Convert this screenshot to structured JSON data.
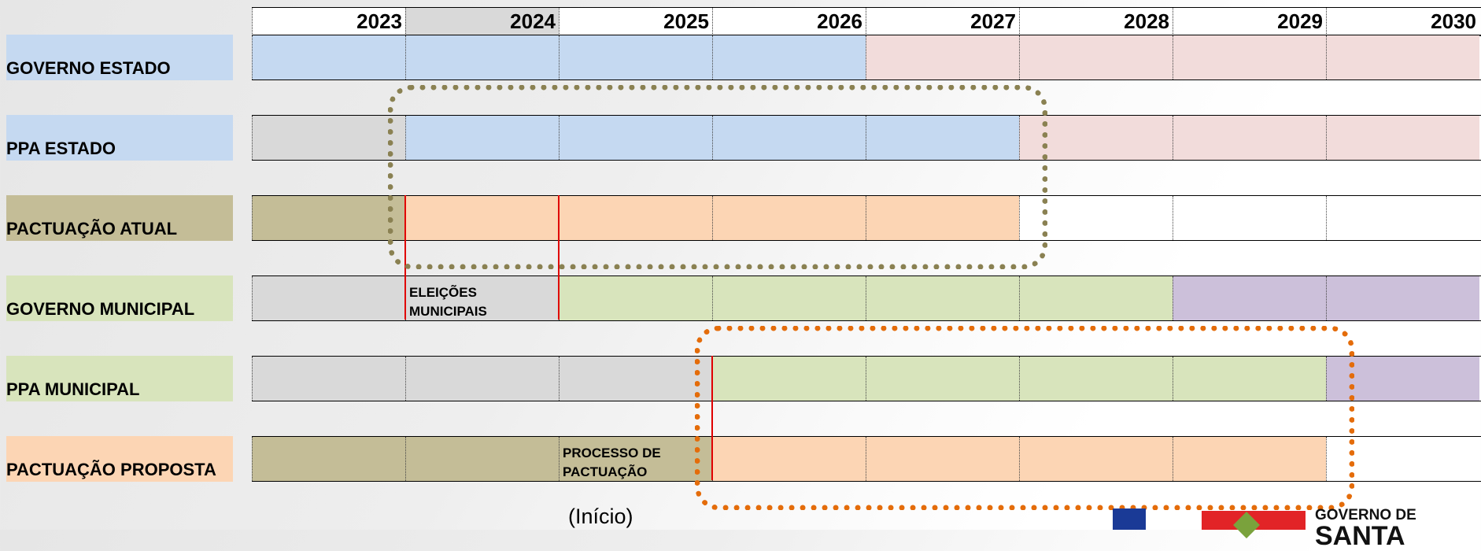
{
  "colors": {
    "blue": "#c5d9f1",
    "pink": "#f2dcdb",
    "gray": "#d9d9d9",
    "khaki": "#c4bd97",
    "peach": "#fcd5b4",
    "green": "#d8e4bc",
    "purple": "#ccc0da",
    "white": "#ffffff",
    "box_khaki": "#8a8152",
    "box_orange": "#e46c0a",
    "divider_red": "#e00000"
  },
  "years": [
    "2023",
    "2024",
    "2025",
    "2026",
    "2027",
    "2028",
    "2029",
    "2030"
  ],
  "selected_year": "2024",
  "rows": [
    {
      "label": "GOVERNO ESTADO",
      "label_color": "blue",
      "cells": [
        "blue",
        "blue",
        "blue",
        "blue",
        "pink",
        "pink",
        "pink",
        "pink"
      ],
      "notes": {}
    },
    {
      "label": "PPA ESTADO",
      "label_color": "blue",
      "cells": [
        "gray",
        "blue",
        "blue",
        "blue",
        "blue",
        "pink",
        "pink",
        "pink"
      ],
      "notes": {}
    },
    {
      "label": "PACTUAÇÃO ATUAL",
      "label_color": "khaki",
      "cells": [
        "khaki",
        "peach",
        "peach",
        "peach",
        "peach",
        "white",
        "white",
        "white"
      ],
      "notes": {}
    },
    {
      "label": "GOVERNO MUNICIPAL",
      "label_color": "green",
      "cells": [
        "gray",
        "gray",
        "green",
        "green",
        "green",
        "green",
        "purple",
        "purple"
      ],
      "notes": {
        "1": "ELEIÇÕES\nMUNICIPAIS"
      }
    },
    {
      "label": "PPA MUNICIPAL",
      "label_color": "green",
      "cells": [
        "gray",
        "gray",
        "gray",
        "green",
        "green",
        "green",
        "green",
        "purple"
      ],
      "notes": {}
    },
    {
      "label": "PACTUAÇÃO PROPOSTA",
      "label_color": "peach",
      "cells": [
        "khaki",
        "khaki",
        "khaki",
        "peach",
        "peach",
        "peach",
        "peach",
        "white"
      ],
      "notes": {
        "2": "PROCESSO DE\nPACTUAÇÃO"
      }
    }
  ],
  "red_dividers": [
    {
      "year": "2024",
      "from_row": 2,
      "to_row": 3
    },
    {
      "year": "2025",
      "from_row": 2,
      "to_row": 3
    },
    {
      "year": "2026",
      "from_row": 4,
      "to_row": 5
    }
  ],
  "highlight_boxes": [
    {
      "color": "box_khaki",
      "from_year": "2024",
      "to_year": "2027",
      "from_row": 1,
      "to_row": 2
    },
    {
      "color": "box_orange",
      "from_year": "2026",
      "to_year": "2029",
      "from_row": 4,
      "to_row": 5
    }
  ],
  "caption": "(Início)",
  "logo": {
    "line1": "GOVERNO DE",
    "line2": "SANTA",
    "icons": [
      "flag-icon",
      "state-emblem-icon"
    ]
  }
}
